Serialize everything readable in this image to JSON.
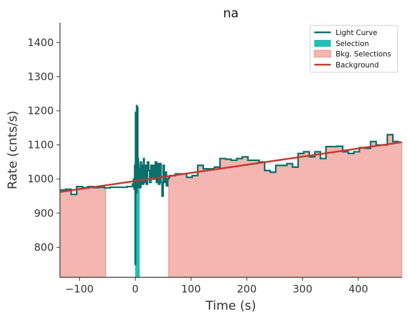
{
  "chart_data": {
    "type": "line",
    "title": "na",
    "xlabel": "Time (s)",
    "ylabel": "Rate (cnts/s)",
    "xlim": [
      -135,
      478
    ],
    "ylim": [
      712,
      1458
    ],
    "xticks": [
      -100,
      0,
      100,
      200,
      300,
      400
    ],
    "xtick_labels": [
      "−100",
      "0",
      "100",
      "200",
      "300",
      "400"
    ],
    "yticks": [
      800,
      900,
      1000,
      1100,
      1200,
      1300,
      1400
    ],
    "ytick_labels": [
      "800",
      "900",
      "1000",
      "1100",
      "1200",
      "1300",
      "1400"
    ],
    "grid": false,
    "legend_position": "top-right",
    "legend": [
      {
        "name": "Light Curve",
        "kind": "line",
        "color": "#0b6f6a"
      },
      {
        "name": "Selection",
        "kind": "patch",
        "color": "#23bfb2"
      },
      {
        "name": "Bkg. Selections",
        "kind": "patch",
        "color": "#f4b6b0"
      },
      {
        "name": "Background",
        "kind": "line",
        "color": "#c0392b"
      }
    ],
    "colors": {
      "light_curve": "#0b6f6a",
      "selection": "#23bfb2",
      "bkg_selection": "#f4b6b0",
      "bkg_edge": "#e8867c",
      "background": "#c0392b"
    },
    "bkg_selections": [
      [
        -135,
        -53
      ],
      [
        60,
        478
      ]
    ],
    "selection": [
      0,
      8
    ],
    "background_line": {
      "x": [
        -135,
        478
      ],
      "y": [
        962,
        1108
      ]
    },
    "light_curve": {
      "x": [
        -135,
        -125,
        -115,
        -105,
        -95,
        -85,
        -75,
        -65,
        -55,
        -45,
        -35,
        -25,
        -15,
        -5,
        -3,
        -2,
        -1,
        0,
        0.5,
        1,
        1.5,
        2,
        2.5,
        3,
        3.5,
        4,
        4.5,
        5,
        5.5,
        6,
        6.5,
        7,
        8,
        9,
        10,
        11,
        12,
        13,
        14,
        15,
        16,
        17,
        18,
        20,
        22,
        24,
        26,
        28,
        30,
        32,
        34,
        36,
        38,
        40,
        42,
        44,
        46,
        48,
        50,
        52,
        54,
        56,
        58,
        60,
        62,
        72,
        82,
        92,
        102,
        112,
        122,
        132,
        142,
        152,
        162,
        172,
        182,
        192,
        202,
        212,
        222,
        232,
        242,
        252,
        262,
        272,
        282,
        292,
        302,
        312,
        322,
        332,
        342,
        352,
        362,
        372,
        382,
        392,
        402,
        412,
        422,
        432,
        442,
        452,
        462,
        472,
        478
      ],
      "y": [
        968,
        970,
        955,
        978,
        975,
        978,
        975,
        976,
        974,
        976,
        976,
        976,
        978,
        985,
        1000,
        970,
        1040,
        750,
        1195,
        1050,
        1185,
        960,
        1215,
        1005,
        1100,
        1210,
        1000,
        1060,
        975,
        1040,
        1005,
        1000,
        1030,
        975,
        1050,
        985,
        1040,
        1020,
        985,
        1060,
        1005,
        990,
        1040,
        985,
        1050,
        1025,
        990,
        1040,
        1000,
        1040,
        1000,
        1050,
        990,
        1045,
        985,
        1045,
        990,
        950,
        1040,
        990,
        1020,
        980,
        1000,
        1005,
        1010,
        1015,
        1015,
        1005,
        1010,
        1040,
        1030,
        1030,
        1035,
        1060,
        1058,
        1055,
        1060,
        1065,
        1055,
        1055,
        1050,
        1025,
        1020,
        1040,
        1040,
        1045,
        1035,
        1075,
        1080,
        1065,
        1080,
        1060,
        1095,
        1095,
        1096,
        1080,
        1075,
        1080,
        1092,
        1090,
        1110,
        1100,
        1100,
        1130,
        1110,
        1108,
        1108
      ]
    }
  }
}
